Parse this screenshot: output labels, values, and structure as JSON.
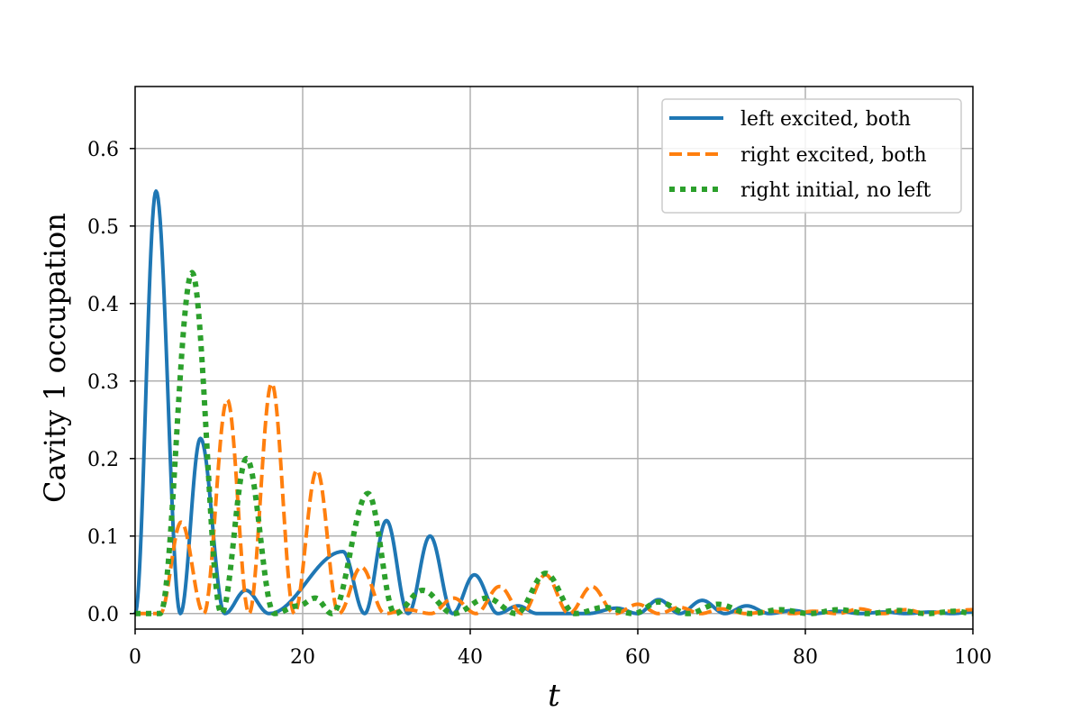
{
  "chart_data": {
    "type": "line",
    "title": "",
    "xlabel": "t",
    "ylabel": "Cavity 1 occupation",
    "xlim": [
      0,
      100
    ],
    "ylim": [
      -0.02,
      0.68
    ],
    "x_ticks": [
      0,
      20,
      40,
      60,
      80,
      100
    ],
    "x_tick_labels": [
      "0",
      "20",
      "40",
      "60",
      "80",
      "100"
    ],
    "y_ticks": [
      0.0,
      0.1,
      0.2,
      0.3,
      0.4,
      0.5,
      0.6
    ],
    "y_tick_labels": [
      "0.0",
      "0.1",
      "0.2",
      "0.3",
      "0.4",
      "0.5",
      "0.6"
    ],
    "grid": true,
    "legend_position": "top-right",
    "series": [
      {
        "name": "left excited, both",
        "color": "#1f77b4",
        "style": "solid",
        "peaks": [
          [
            2.5,
            0.545
          ],
          [
            7.8,
            0.226
          ],
          [
            13.2,
            0.03
          ],
          [
            24.8,
            0.08
          ],
          [
            30.0,
            0.12
          ],
          [
            35.2,
            0.1
          ],
          [
            40.5,
            0.05
          ],
          [
            45.7,
            0.01
          ],
          [
            57.5,
            0.007
          ],
          [
            62.5,
            0.018
          ],
          [
            67.7,
            0.017
          ],
          [
            73.0,
            0.01
          ],
          [
            78.5,
            0.004
          ],
          [
            84.0,
            0.003
          ],
          [
            89.5,
            0.002
          ],
          [
            95.0,
            0.002
          ],
          [
            100.0,
            0.002
          ]
        ],
        "zeros": [
          0.0,
          5.4,
          10.7,
          16.0,
          27.4,
          32.6,
          37.9,
          43.3,
          48.0,
          54.0,
          60.0,
          65.0,
          70.4,
          75.7,
          81.0,
          86.5,
          92.0,
          97.5
        ]
      },
      {
        "name": "right excited, both",
        "color": "#ff7f0e",
        "style": "dashed",
        "peaks": [
          [
            5.5,
            0.118
          ],
          [
            11.0,
            0.276
          ],
          [
            16.3,
            0.297
          ],
          [
            21.7,
            0.185
          ],
          [
            27.0,
            0.06
          ],
          [
            32.5,
            0.005
          ],
          [
            38.0,
            0.02
          ],
          [
            43.5,
            0.035
          ],
          [
            49.0,
            0.05
          ],
          [
            54.5,
            0.035
          ],
          [
            60.0,
            0.012
          ],
          [
            65.0,
            0.008
          ],
          [
            70.0,
            0.006
          ],
          [
            76.0,
            0.003
          ],
          [
            81.0,
            0.003
          ],
          [
            86.5,
            0.006
          ],
          [
            92.0,
            0.005
          ],
          [
            97.0,
            0.003
          ],
          [
            100.0,
            0.005
          ]
        ],
        "zeros": [
          0.0,
          3.0,
          8.2,
          13.6,
          19.0,
          24.3,
          29.8,
          35.3,
          40.7,
          46.2,
          51.8,
          57.3,
          62.5,
          67.5,
          73.0,
          78.5,
          83.8,
          89.3,
          94.5
        ]
      },
      {
        "name": "right initial, no left",
        "color": "#2ca02c",
        "style": "dotted",
        "peaks": [
          [
            6.8,
            0.44
          ],
          [
            13.3,
            0.2
          ],
          [
            19.5,
            0.01
          ],
          [
            21.5,
            0.02
          ],
          [
            27.8,
            0.155
          ],
          [
            34.3,
            0.03
          ],
          [
            42.0,
            0.02
          ],
          [
            49.0,
            0.052
          ],
          [
            56.0,
            0.008
          ],
          [
            62.5,
            0.015
          ],
          [
            69.5,
            0.012
          ],
          [
            77.0,
            0.005
          ],
          [
            84.0,
            0.005
          ],
          [
            91.0,
            0.004
          ],
          [
            98.0,
            0.003
          ]
        ],
        "zeros": [
          0.0,
          3.0,
          10.3,
          16.6,
          23.5,
          31.0,
          38.0,
          45.5,
          52.5,
          59.5,
          66.0,
          73.5,
          80.5,
          87.5,
          94.5,
          100.0
        ]
      }
    ]
  }
}
